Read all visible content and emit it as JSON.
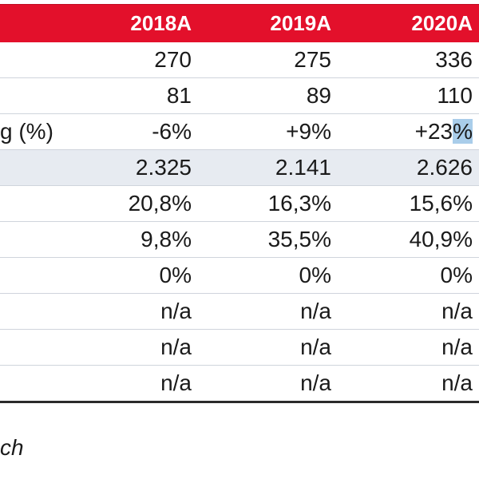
{
  "table": {
    "columns": [
      "2018A",
      "2019A",
      "2020A"
    ],
    "rows": [
      {
        "label": "",
        "values": [
          "270",
          "275",
          "336"
        ]
      },
      {
        "label": "",
        "values": [
          "81",
          "89",
          "110"
        ]
      },
      {
        "label": "g (%)",
        "values": [
          "-6%",
          "+9%",
          "+23%"
        ]
      },
      {
        "label": "",
        "values": [
          "2.325",
          "2.141",
          "2.626"
        ]
      },
      {
        "label": "",
        "values": [
          "20,8%",
          "16,3%",
          "15,6%"
        ]
      },
      {
        "label": "",
        "values": [
          "9,8%",
          "35,5%",
          "40,9%"
        ]
      },
      {
        "label": "",
        "values": [
          "0%",
          "0%",
          "0%"
        ]
      },
      {
        "label": "",
        "values": [
          "n/a",
          "n/a",
          "n/a"
        ]
      },
      {
        "label": "",
        "values": [
          "n/a",
          "n/a",
          "n/a"
        ]
      },
      {
        "label": "",
        "values": [
          "n/a",
          "n/a",
          "n/a"
        ]
      }
    ]
  },
  "source_text": "ch",
  "colors": {
    "header_bg": "#e3102b",
    "row_shade": "#e7ebf1",
    "selection_highlight": "#a9cdea"
  }
}
